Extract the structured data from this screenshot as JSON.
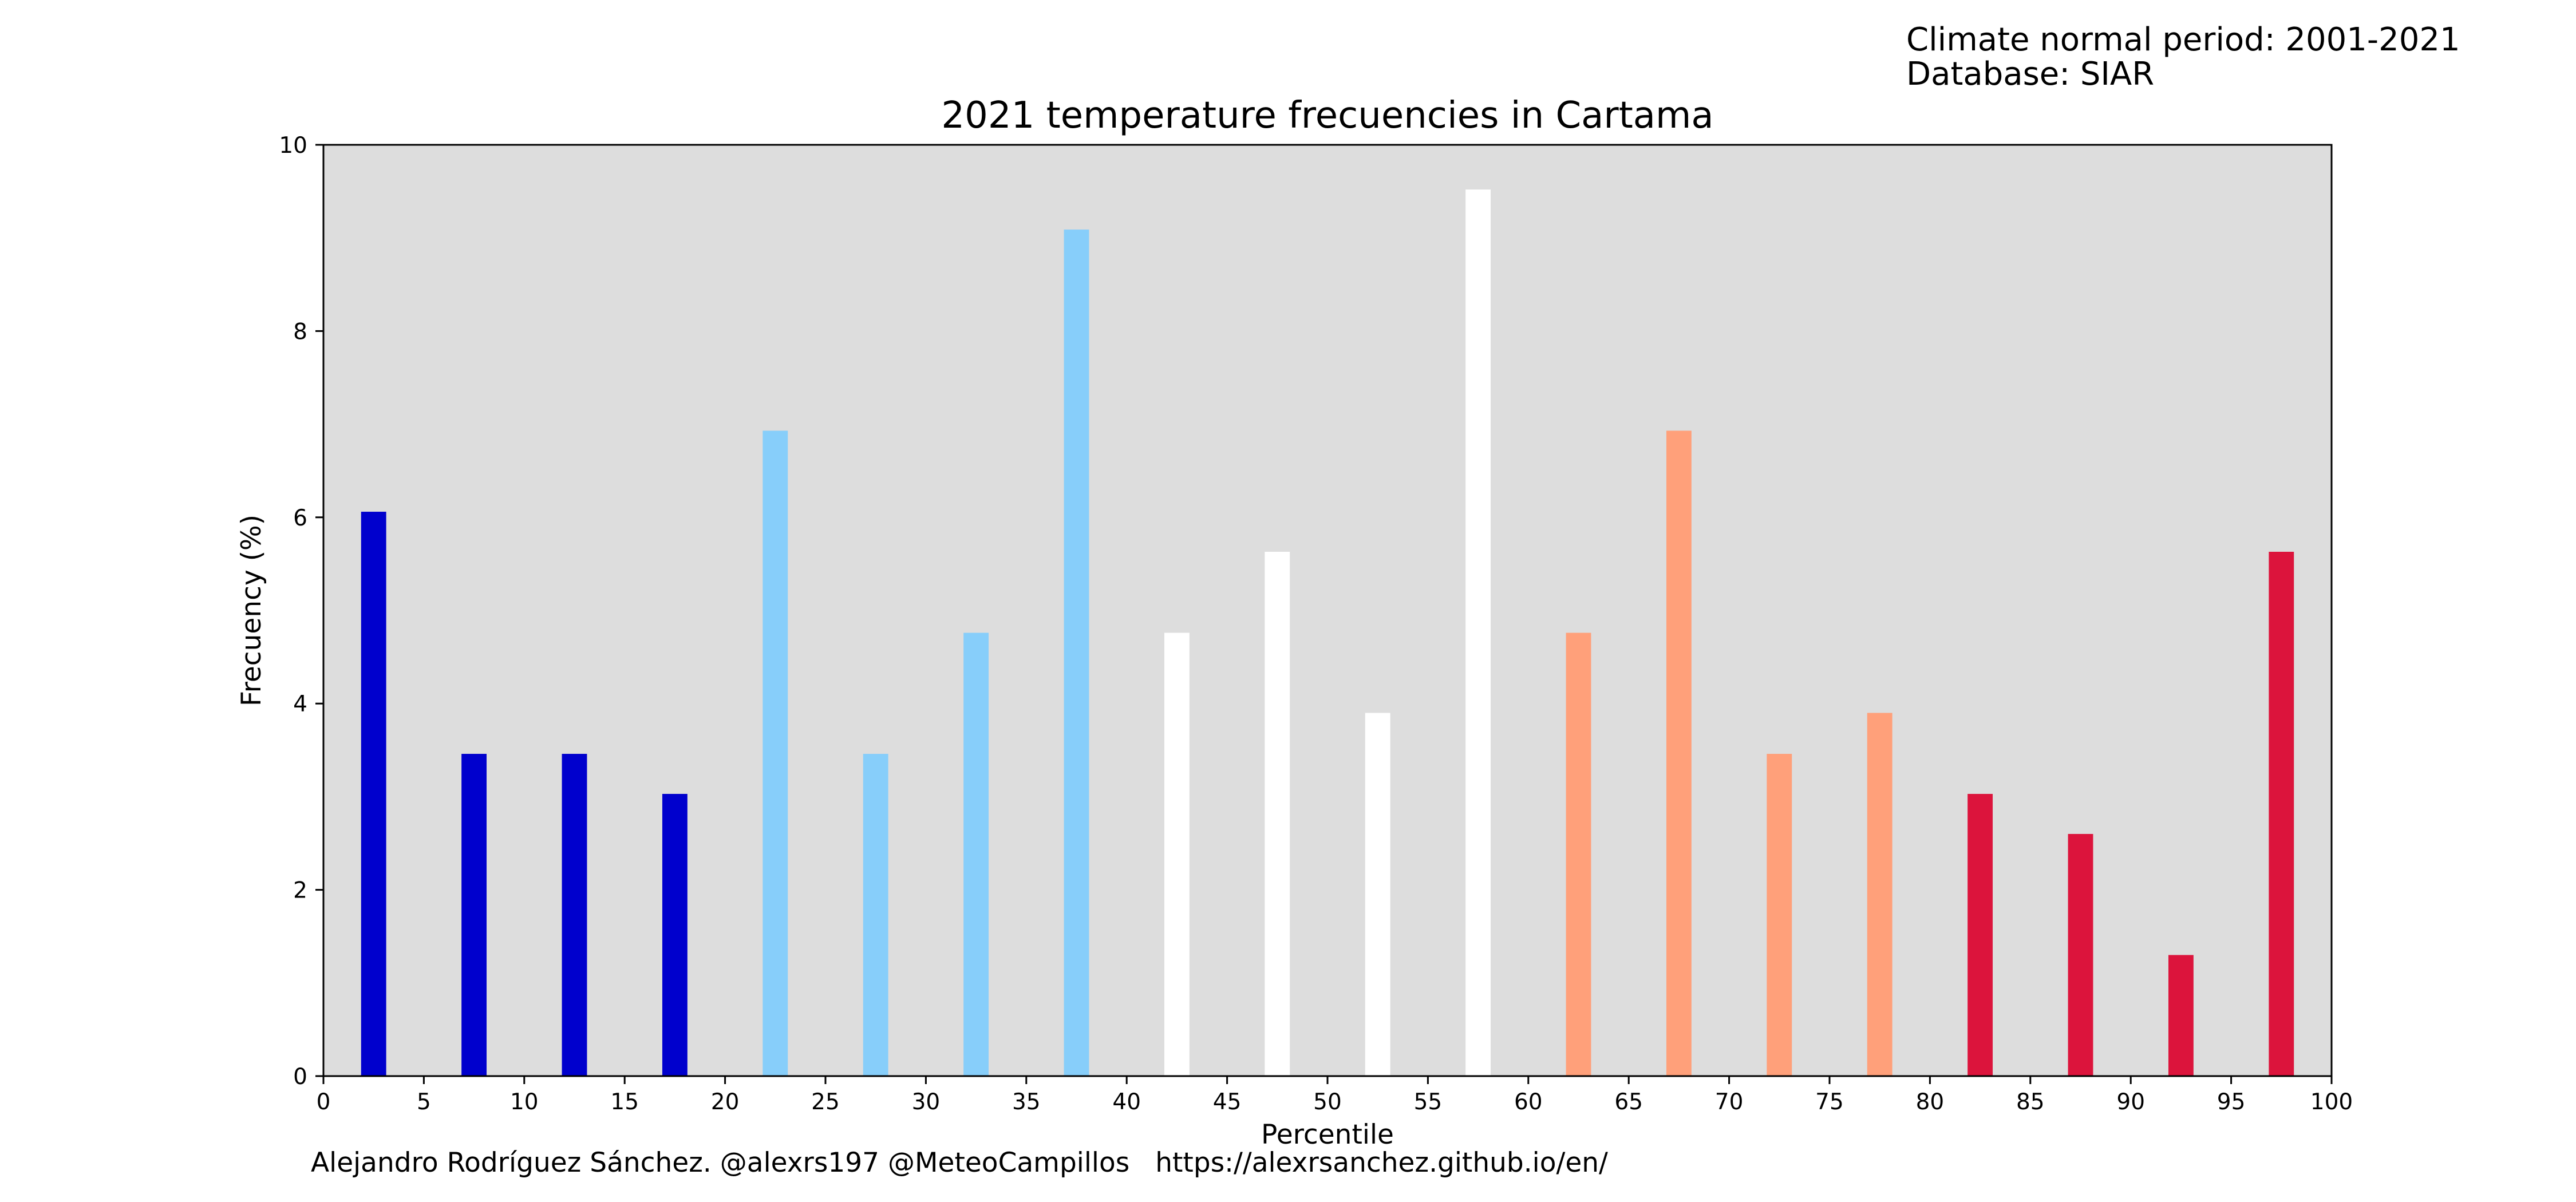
{
  "notes": {
    "period": "Climate normal period: 2001-2021",
    "database": "Database: SIAR"
  },
  "credit": {
    "author": "Alejandro Rodríguez Sánchez. @alexrs197 @MeteoCampillos",
    "url": "https://alexrsanchez.github.io/en/"
  },
  "chart_data": {
    "type": "bar",
    "title": "2021 temperature frecuencies in Cartama",
    "xlabel": "Percentile",
    "ylabel": "Frecuency (%)",
    "xlim": [
      0,
      100
    ],
    "ylim": [
      0,
      10
    ],
    "xticks": [
      0,
      5,
      10,
      15,
      20,
      25,
      30,
      35,
      40,
      45,
      50,
      55,
      60,
      65,
      70,
      75,
      80,
      85,
      90,
      95,
      100
    ],
    "yticks": [
      0,
      2,
      4,
      6,
      8,
      10
    ],
    "grid": false,
    "plot_background": "#dddddd",
    "bar_width": 1.25,
    "x": [
      2.5,
      7.5,
      12.5,
      17.5,
      22.5,
      27.5,
      32.5,
      37.5,
      42.5,
      47.5,
      52.5,
      57.5,
      62.5,
      67.5,
      72.5,
      77.5,
      82.5,
      87.5,
      92.5,
      97.5
    ],
    "values": [
      6.06,
      3.46,
      3.46,
      3.03,
      6.93,
      3.46,
      4.76,
      9.09,
      4.76,
      5.63,
      3.9,
      9.52,
      4.76,
      6.93,
      3.46,
      3.9,
      3.03,
      2.6,
      1.3,
      5.63
    ],
    "colors": [
      "#0000cd",
      "#0000cd",
      "#0000cd",
      "#0000cd",
      "#87cefa",
      "#87cefa",
      "#87cefa",
      "#87cefa",
      "#ffffff",
      "#ffffff",
      "#ffffff",
      "#ffffff",
      "#ffa07a",
      "#ffa07a",
      "#ffa07a",
      "#ffa07a",
      "#dc143c",
      "#dc143c",
      "#dc143c",
      "#dc143c"
    ]
  }
}
